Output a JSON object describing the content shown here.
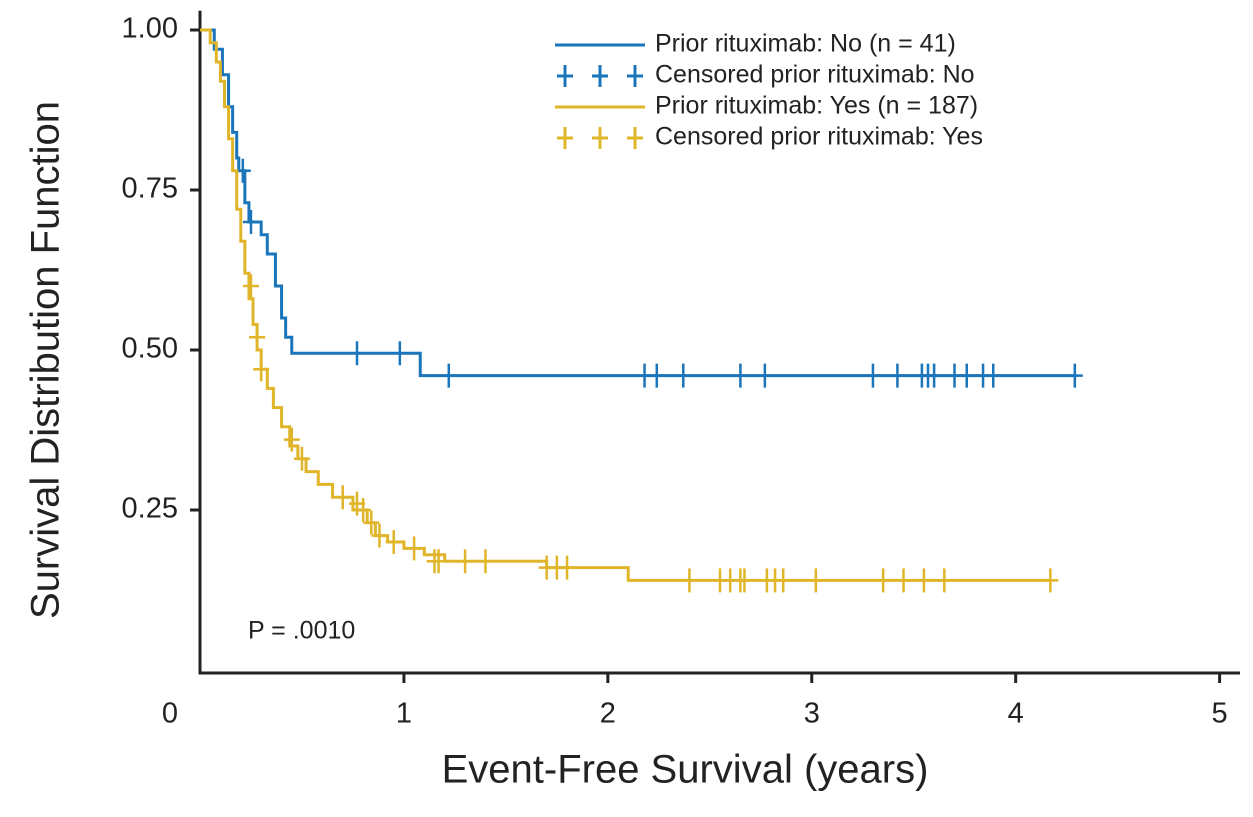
{
  "chart_data": {
    "type": "line",
    "xlabel": "Event-Free Survival (years)",
    "ylabel": "Survival Distribution Function",
    "annotation": "P = .0010",
    "xlim": [
      0,
      5.1
    ],
    "ylim": [
      0,
      1.03
    ],
    "xticks": [
      0,
      1,
      2,
      3,
      4,
      5
    ],
    "yticks": [
      0.25,
      {
        "value": 0.5,
        "label": "0.50"
      },
      0.75,
      {
        "value": 1,
        "label": "1.00"
      }
    ],
    "series": [
      {
        "name": "Prior rituximab: No (n = 41)",
        "color": "#1a75bb",
        "drawstyle": "steps-post",
        "x": [
          0,
          0.07,
          0.11,
          0.14,
          0.16,
          0.18,
          0.19,
          0.22,
          0.24,
          0.3,
          0.33,
          0.37,
          0.4,
          0.42,
          0.45,
          1.08,
          4.3
        ],
        "values": [
          1,
          0.97,
          0.93,
          0.88,
          0.84,
          0.8,
          0.78,
          0.73,
          0.7,
          0.68,
          0.65,
          0.6,
          0.55,
          0.52,
          0.495,
          0.46,
          0.46
        ]
      },
      {
        "name": "Censored prior rituximab: No",
        "color": "#1a75bb",
        "marker": "+",
        "x": [
          0.21,
          0.25,
          0.77,
          0.98,
          1.22,
          2.18,
          2.24,
          2.37,
          2.65,
          2.77,
          3.3,
          3.42,
          3.54,
          3.57,
          3.6,
          3.7,
          3.76,
          3.84,
          3.89,
          4.29
        ],
        "values": [
          0.78,
          0.7,
          0.495,
          0.495,
          0.46,
          0.46,
          0.46,
          0.46,
          0.46,
          0.46,
          0.46,
          0.46,
          0.46,
          0.46,
          0.46,
          0.46,
          0.46,
          0.46,
          0.46,
          0.46
        ]
      },
      {
        "name": "Prior rituximab: Yes (n = 187)",
        "color": "#e0b52a",
        "drawstyle": "steps-post",
        "x": [
          0,
          0.05,
          0.08,
          0.1,
          0.12,
          0.14,
          0.16,
          0.18,
          0.2,
          0.22,
          0.24,
          0.26,
          0.28,
          0.3,
          0.33,
          0.36,
          0.4,
          0.44,
          0.48,
          0.52,
          0.58,
          0.65,
          0.75,
          0.82,
          0.86,
          0.92,
          1.0,
          1.1,
          1.2,
          1.7,
          2.1,
          4.17
        ],
        "values": [
          1,
          0.98,
          0.95,
          0.92,
          0.88,
          0.83,
          0.78,
          0.72,
          0.67,
          0.62,
          0.58,
          0.54,
          0.5,
          0.47,
          0.44,
          0.41,
          0.38,
          0.35,
          0.33,
          0.31,
          0.29,
          0.27,
          0.25,
          0.23,
          0.21,
          0.2,
          0.19,
          0.18,
          0.17,
          0.16,
          0.14,
          0.14
        ]
      },
      {
        "name": "Censored prior rituximab: Yes",
        "color": "#e0b52a",
        "marker": "+",
        "x": [
          0.25,
          0.28,
          0.3,
          0.45,
          0.5,
          0.7,
          0.77,
          0.8,
          0.84,
          0.88,
          0.95,
          1.05,
          1.15,
          1.17,
          1.3,
          1.4,
          1.7,
          1.75,
          1.8,
          2.4,
          2.55,
          2.6,
          2.65,
          2.67,
          2.78,
          2.82,
          2.86,
          3.02,
          3.35,
          3.45,
          3.55,
          3.65,
          4.17
        ],
        "values": [
          0.6,
          0.52,
          0.47,
          0.36,
          0.33,
          0.27,
          0.26,
          0.25,
          0.23,
          0.21,
          0.2,
          0.19,
          0.17,
          0.17,
          0.17,
          0.17,
          0.16,
          0.16,
          0.16,
          0.14,
          0.14,
          0.14,
          0.14,
          0.14,
          0.14,
          0.14,
          0.14,
          0.14,
          0.14,
          0.14,
          0.14,
          0.14,
          0.14
        ]
      }
    ]
  }
}
